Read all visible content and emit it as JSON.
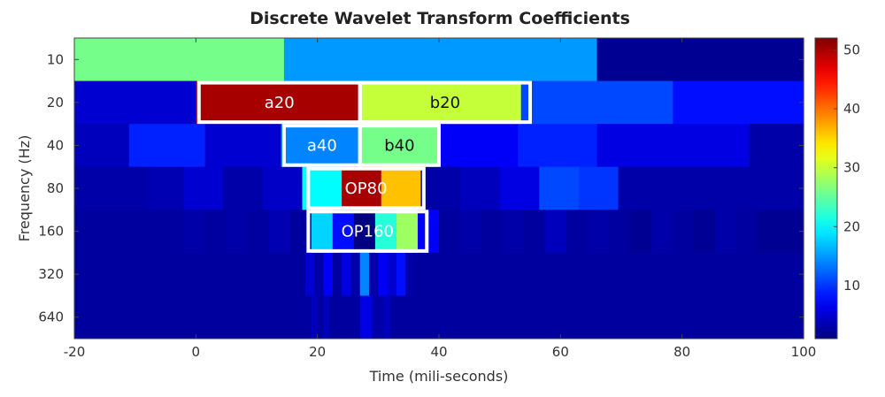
{
  "chart_data": {
    "type": "heatmap",
    "title": "Discrete Wavelet Transform Coefficients",
    "xlabel": "Time (mili-seconds)",
    "ylabel": "Frequency (Hz)",
    "xlim": [
      -20,
      100
    ],
    "x_ticks": [
      "-20",
      "0",
      "20",
      "40",
      "60",
      "80",
      "100"
    ],
    "x_tick_values": [
      -20,
      0,
      20,
      40,
      60,
      80,
      100
    ],
    "y_ticks": [
      "10",
      "20",
      "40",
      "80",
      "160",
      "320",
      "640"
    ],
    "colorbar": {
      "min": 1,
      "max": 52,
      "ticks": [
        "10",
        "20",
        "30",
        "40",
        "50"
      ],
      "tick_values": [
        10,
        20,
        30,
        40,
        50
      ],
      "colormap": "jet"
    },
    "rows": [
      {
        "freq": "10",
        "cells": [
          [
            -20,
            14.5,
            26
          ],
          [
            14.5,
            66,
            15
          ],
          [
            66,
            100,
            2
          ]
        ]
      },
      {
        "freq": "20",
        "cells": [
          [
            -20,
            0,
            5
          ],
          [
            0,
            27,
            50
          ],
          [
            27,
            53.5,
            30
          ],
          [
            53.5,
            78.5,
            11
          ],
          [
            78.5,
            100,
            8
          ]
        ]
      },
      {
        "freq": "40",
        "cells": [
          [
            -20,
            -11,
            4
          ],
          [
            -11,
            1.5,
            9
          ],
          [
            1.5,
            14,
            5
          ],
          [
            14,
            27,
            14
          ],
          [
            27,
            40,
            26
          ],
          [
            40,
            53,
            7
          ],
          [
            53,
            66,
            9
          ],
          [
            66,
            91,
            6
          ],
          [
            91,
            100,
            3
          ]
        ]
      },
      {
        "freq": "80",
        "cells": [
          [
            -20,
            -8,
            3
          ],
          [
            -8,
            -2,
            3.5
          ],
          [
            -2,
            4.5,
            5
          ],
          [
            4.5,
            11,
            3
          ],
          [
            11,
            17.5,
            4.5
          ],
          [
            17.5,
            24,
            20
          ],
          [
            24,
            30.5,
            50
          ],
          [
            30.5,
            37,
            36
          ],
          [
            37,
            43.5,
            3
          ],
          [
            43.5,
            50,
            4
          ],
          [
            50,
            56.5,
            6
          ],
          [
            56.5,
            63,
            11
          ],
          [
            63,
            69.5,
            10
          ],
          [
            69.5,
            100,
            3
          ]
        ]
      },
      {
        "freq": "160",
        "cells": [
          [
            -20,
            -2,
            2.5
          ],
          [
            -2,
            1.5,
            3
          ],
          [
            1.5,
            5,
            2.5
          ],
          [
            5,
            8.5,
            3
          ],
          [
            8.5,
            12,
            2.5
          ],
          [
            12,
            15.5,
            3.5
          ],
          [
            15.5,
            19,
            2.5
          ],
          [
            19,
            22.5,
            18
          ],
          [
            22.5,
            26,
            8
          ],
          [
            26,
            29.5,
            1
          ],
          [
            29.5,
            33,
            22
          ],
          [
            33,
            36.5,
            28
          ],
          [
            36.5,
            40,
            7
          ],
          [
            40,
            43.5,
            2.5
          ],
          [
            43.5,
            47,
            3
          ],
          [
            47,
            50.5,
            2.5
          ],
          [
            50.5,
            54,
            3
          ],
          [
            54,
            57.5,
            2.5
          ],
          [
            57.5,
            61,
            4
          ],
          [
            61,
            64.5,
            2.5
          ],
          [
            64.5,
            68,
            3
          ],
          [
            68,
            71.5,
            2.5
          ],
          [
            71.5,
            75,
            2
          ],
          [
            75,
            78.5,
            3
          ],
          [
            78.5,
            82,
            2.5
          ],
          [
            82,
            85.5,
            2
          ],
          [
            85.5,
            89,
            3
          ],
          [
            89,
            92.5,
            2.5
          ],
          [
            92.5,
            100,
            2
          ]
        ]
      },
      {
        "freq": "320",
        "cells": [
          [
            -20,
            18,
            2.5
          ],
          [
            18,
            19.5,
            5
          ],
          [
            19.5,
            21,
            3
          ],
          [
            21,
            22.5,
            7
          ],
          [
            22.5,
            24,
            2.5
          ],
          [
            24,
            25.5,
            6
          ],
          [
            25.5,
            27,
            3
          ],
          [
            27,
            28.5,
            14
          ],
          [
            28.5,
            30,
            3
          ],
          [
            30,
            31.5,
            7
          ],
          [
            31.5,
            33,
            5
          ],
          [
            33,
            34.5,
            8
          ],
          [
            34.5,
            36,
            3
          ],
          [
            36,
            100,
            2.5
          ]
        ]
      },
      {
        "freq": "640",
        "cells": [
          [
            -20,
            19,
            2.5
          ],
          [
            19,
            20,
            4
          ],
          [
            20,
            21,
            2.5
          ],
          [
            21,
            22,
            4
          ],
          [
            22,
            27,
            2.5
          ],
          [
            27,
            29,
            6
          ],
          [
            29,
            31,
            3
          ],
          [
            31,
            32,
            4
          ],
          [
            32,
            100,
            2.5
          ]
        ]
      }
    ],
    "annotations": [
      {
        "label": "a20",
        "row": "20",
        "x0": 0.5,
        "x1": 27,
        "text_color": "#ffffff"
      },
      {
        "label": "b20",
        "row": "20",
        "x0": 27,
        "x1": 55,
        "text_color": "#111111"
      },
      {
        "label": "a40",
        "row": "40",
        "x0": 14.5,
        "x1": 27,
        "text_color": "#ffffff"
      },
      {
        "label": "b40",
        "row": "40",
        "x0": 27,
        "x1": 40,
        "text_color": "#111111"
      },
      {
        "label": "OP80",
        "row": "80",
        "x0": 18.5,
        "x1": 37.5,
        "text_color": "#ffffff"
      },
      {
        "label": "OP160",
        "row": "160",
        "x0": 18.5,
        "x1": 38,
        "text_color": "#ffffff"
      }
    ]
  }
}
